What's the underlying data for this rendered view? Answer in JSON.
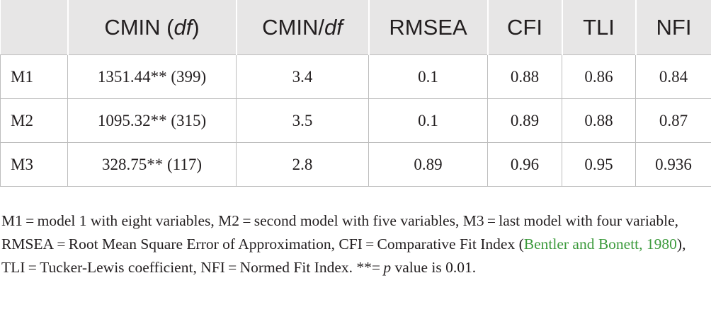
{
  "table": {
    "headers": {
      "col0": "",
      "col1_main": "CMIN (",
      "col1_ital": "df",
      "col1_end": ")",
      "col2_main": "CMIN/",
      "col2_ital": "df",
      "col3": "RMSEA",
      "col4": "CFI",
      "col5": "TLI",
      "col6": "NFI"
    },
    "rows": [
      {
        "model": "M1",
        "cmin": "1351.44** (399)",
        "cmin_df": "3.4",
        "rmsea": "0.1",
        "cfi": "0.88",
        "tli": "0.86",
        "nfi": "0.84"
      },
      {
        "model": "M2",
        "cmin": "1095.32** (315)",
        "cmin_df": "3.5",
        "rmsea": "0.1",
        "cfi": "0.89",
        "tli": "0.88",
        "nfi": "0.87"
      },
      {
        "model": "M3",
        "cmin": "328.75** (117)",
        "cmin_df": "2.8",
        "rmsea": "0.89",
        "cfi": "0.96",
        "tli": "0.95",
        "nfi": "0.936"
      }
    ]
  },
  "note": {
    "part1": "M1 = model 1 with eight variables, M2 = second model with five variables, M3 = last model with four variable, RMSEA = Root Mean Square Error of Approximation, CFI = Comparative Fit Index (",
    "citation": "Bentler and Bonett, 1980",
    "part2": "), TLI = Tucker-Lewis coefficient, NFI = Normed Fit Index. **= ",
    "p_symbol": "p",
    "part3": " value is 0.01."
  },
  "colors": {
    "header_bg": "#e7e6e6",
    "link": "#3c9a3c",
    "text": "#231f20"
  }
}
